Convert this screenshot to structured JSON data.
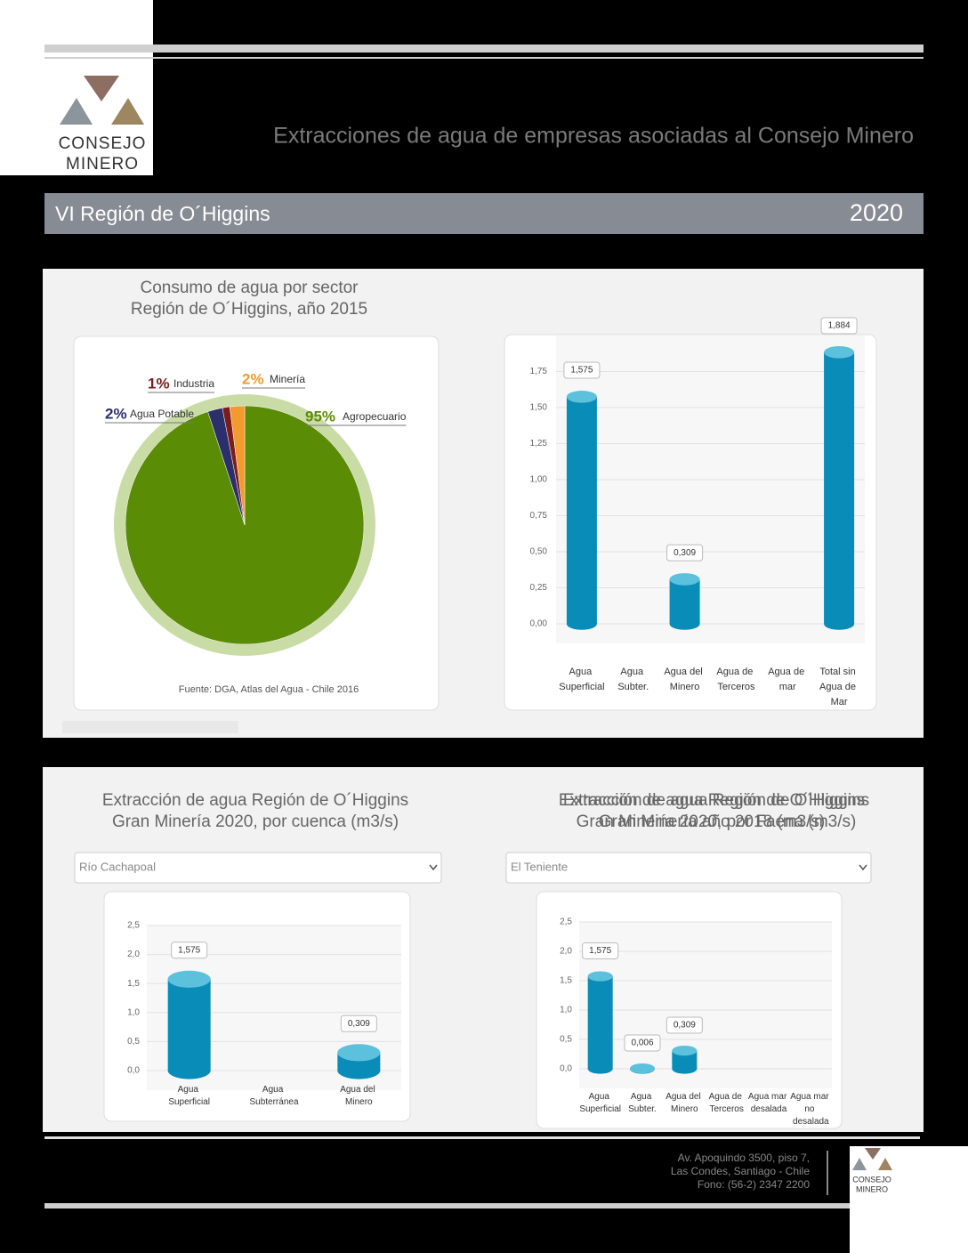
{
  "header": {
    "title": "Extracciones de agua de empresas asociadas al Consejo Minero",
    "region": "VI Región de O´Higgins",
    "year": "2020"
  },
  "logo": [
    "CONSEJO",
    "MINERO"
  ],
  "footer": {
    "address": [
      "Av. Apoquindo 3500, piso 7,",
      "Las Condes, Santiago - Chile",
      "Fono: (56-2) 2347 2200"
    ]
  },
  "chart_data": [
    {
      "type": "pie",
      "title": [
        "Consumo de agua por sector",
        "Región de O´Higgins, año 2015"
      ],
      "categories": [
        "Agropecuario",
        "Agua Potable",
        "Industria",
        "Minería"
      ],
      "values": [
        95,
        2,
        1,
        2
      ],
      "value_labels": [
        "95%",
        "2%",
        "1%",
        "2%"
      ],
      "colors": [
        "#5b8c05",
        "#2b2f6b",
        "#7a1c1c",
        "#f39a2e"
      ],
      "source": "Fuente: DGA, Atlas del Agua - Chile 2016"
    },
    {
      "type": "bar",
      "title": [
        "Extracción de agua Región de O´Higgins",
        "Gran Minería año 2018 (m3/s)"
      ],
      "categories": [
        "Agua Superficial",
        "Agua Subter.",
        "Agua del Minero",
        "Agua de Terceros",
        "Agua de mar",
        "Total sin Agua de Mar"
      ],
      "values": [
        1.575,
        null,
        0.309,
        null,
        null,
        1.884
      ],
      "value_labels": [
        "1,575",
        null,
        "0,309",
        null,
        null,
        "1,884"
      ],
      "color": "#0a8cb8",
      "ylim": [
        0,
        2
      ],
      "grid": true,
      "yticks": [
        {
          "value": 0,
          "label": "0,00"
        },
        {
          "value": 0.25,
          "label": "0,25"
        },
        {
          "value": 0.5,
          "label": "0,50"
        },
        {
          "value": 0.75,
          "label": "0,75"
        },
        {
          "value": 1,
          "label": "1,00"
        },
        {
          "value": 1.25,
          "label": "1,25"
        },
        {
          "value": 1.5,
          "label": "1,50"
        },
        {
          "value": 1.75,
          "label": "1,75"
        }
      ]
    },
    {
      "type": "bar",
      "title": [
        "Extracción de agua Región de O´Higgins",
        "Gran Minería 2020, por cuenca (m3/s)"
      ],
      "filter": "Río Cachapoal",
      "categories": [
        "Agua Superficial",
        "Agua Subterránea",
        "Agua del Minero"
      ],
      "values": [
        1.575,
        null,
        0.309
      ],
      "value_labels": [
        "1,575",
        null,
        "0,309"
      ],
      "color": "#0a8cb8",
      "ylim": [
        0,
        2.5
      ],
      "grid": true,
      "yticks": [
        {
          "value": 0,
          "label": "0,0"
        },
        {
          "value": 0.5,
          "label": "0,5"
        },
        {
          "value": 1,
          "label": "1,0"
        },
        {
          "value": 1.5,
          "label": "1,5"
        },
        {
          "value": 2,
          "label": "2,0"
        },
        {
          "value": 2.5,
          "label": "2,5"
        }
      ]
    },
    {
      "type": "bar",
      "title": [
        "Extracción de agua Región de O´Higgins",
        "Gran Minería 2020, por Faena (m3/s)"
      ],
      "filter": "El Teniente",
      "categories": [
        "Agua Superficial",
        "Agua Subter.",
        "Agua del Minero",
        "Agua de Terceros",
        "Agua mar desalada",
        "Agua mar no desalada"
      ],
      "values": [
        1.575,
        0.006,
        0.309,
        null,
        null,
        null
      ],
      "value_labels": [
        "1,575",
        "0,006",
        "0,309",
        null,
        null,
        null
      ],
      "color": "#0a8cb8",
      "ylim": [
        0,
        2.5
      ],
      "grid": true,
      "yticks": [
        {
          "value": 0,
          "label": "0,0"
        },
        {
          "value": 0.5,
          "label": "0,5"
        },
        {
          "value": 1,
          "label": "1,0"
        },
        {
          "value": 1.5,
          "label": "1,5"
        },
        {
          "value": 2,
          "label": "2,0"
        },
        {
          "value": 2.5,
          "label": "2,5"
        }
      ]
    }
  ]
}
